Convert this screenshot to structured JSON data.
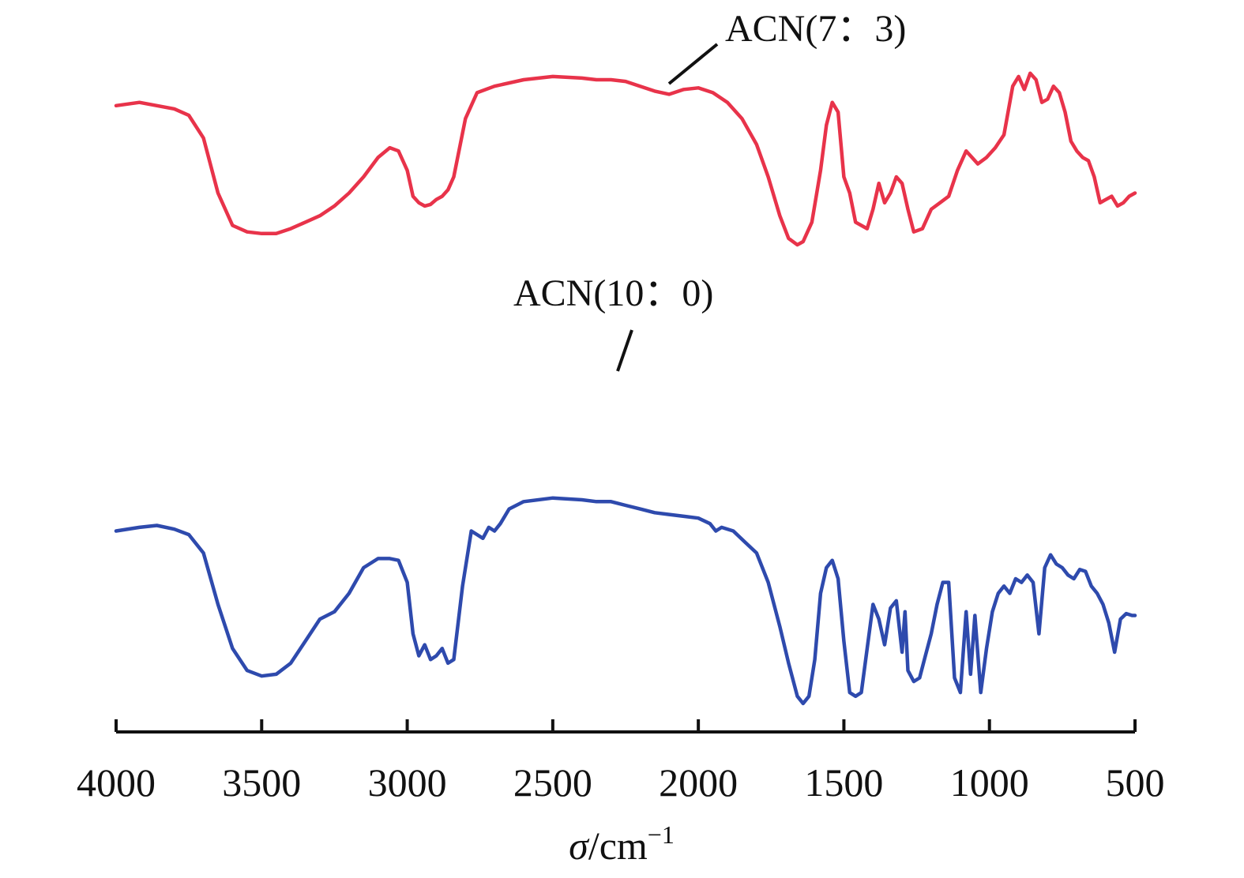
{
  "chart_data": {
    "type": "line",
    "xlabel_symbol": "σ",
    "xlabel_unit": "/cm",
    "xlabel_sup": "−1",
    "xlim": [
      4000,
      500
    ],
    "x_ticks": [
      4000,
      3500,
      3000,
      2500,
      2000,
      1500,
      1000,
      500
    ],
    "x_tick_labels": [
      "4000",
      "3500",
      "3000",
      "2500",
      "2000",
      "1500",
      "1000",
      "500"
    ],
    "grid": false,
    "y_axis_visible": false,
    "series": [
      {
        "name": "ACN(7：3)",
        "color": "#e8334a",
        "points": [
          [
            4000,
            0.82
          ],
          [
            3920,
            0.83
          ],
          [
            3860,
            0.82
          ],
          [
            3800,
            0.81
          ],
          [
            3750,
            0.79
          ],
          [
            3700,
            0.72
          ],
          [
            3650,
            0.55
          ],
          [
            3600,
            0.45
          ],
          [
            3550,
            0.43
          ],
          [
            3500,
            0.425
          ],
          [
            3450,
            0.425
          ],
          [
            3400,
            0.44
          ],
          [
            3350,
            0.46
          ],
          [
            3300,
            0.48
          ],
          [
            3250,
            0.51
          ],
          [
            3200,
            0.55
          ],
          [
            3150,
            0.6
          ],
          [
            3100,
            0.66
          ],
          [
            3060,
            0.69
          ],
          [
            3030,
            0.68
          ],
          [
            3000,
            0.62
          ],
          [
            2980,
            0.54
          ],
          [
            2960,
            0.52
          ],
          [
            2940,
            0.51
          ],
          [
            2920,
            0.515
          ],
          [
            2900,
            0.53
          ],
          [
            2880,
            0.54
          ],
          [
            2860,
            0.56
          ],
          [
            2840,
            0.6
          ],
          [
            2800,
            0.78
          ],
          [
            2760,
            0.86
          ],
          [
            2700,
            0.88
          ],
          [
            2600,
            0.9
          ],
          [
            2500,
            0.91
          ],
          [
            2400,
            0.905
          ],
          [
            2350,
            0.9
          ],
          [
            2300,
            0.9
          ],
          [
            2250,
            0.895
          ],
          [
            2200,
            0.88
          ],
          [
            2150,
            0.865
          ],
          [
            2100,
            0.855
          ],
          [
            2050,
            0.87
          ],
          [
            2000,
            0.875
          ],
          [
            1950,
            0.86
          ],
          [
            1900,
            0.83
          ],
          [
            1850,
            0.78
          ],
          [
            1800,
            0.7
          ],
          [
            1760,
            0.6
          ],
          [
            1720,
            0.48
          ],
          [
            1690,
            0.41
          ],
          [
            1660,
            0.39
          ],
          [
            1640,
            0.4
          ],
          [
            1610,
            0.46
          ],
          [
            1580,
            0.62
          ],
          [
            1560,
            0.76
          ],
          [
            1540,
            0.83
          ],
          [
            1520,
            0.8
          ],
          [
            1500,
            0.6
          ],
          [
            1480,
            0.55
          ],
          [
            1460,
            0.46
          ],
          [
            1440,
            0.45
          ],
          [
            1420,
            0.44
          ],
          [
            1400,
            0.5
          ],
          [
            1380,
            0.58
          ],
          [
            1360,
            0.52
          ],
          [
            1340,
            0.55
          ],
          [
            1320,
            0.6
          ],
          [
            1300,
            0.58
          ],
          [
            1280,
            0.5
          ],
          [
            1260,
            0.43
          ],
          [
            1230,
            0.44
          ],
          [
            1200,
            0.5
          ],
          [
            1170,
            0.52
          ],
          [
            1140,
            0.54
          ],
          [
            1110,
            0.62
          ],
          [
            1080,
            0.68
          ],
          [
            1060,
            0.66
          ],
          [
            1040,
            0.64
          ],
          [
            1010,
            0.66
          ],
          [
            980,
            0.69
          ],
          [
            950,
            0.73
          ],
          [
            920,
            0.88
          ],
          [
            900,
            0.91
          ],
          [
            880,
            0.87
          ],
          [
            860,
            0.92
          ],
          [
            840,
            0.9
          ],
          [
            820,
            0.83
          ],
          [
            800,
            0.84
          ],
          [
            780,
            0.88
          ],
          [
            760,
            0.86
          ],
          [
            740,
            0.8
          ],
          [
            720,
            0.71
          ],
          [
            700,
            0.68
          ],
          [
            680,
            0.66
          ],
          [
            660,
            0.65
          ],
          [
            640,
            0.6
          ],
          [
            620,
            0.52
          ],
          [
            600,
            0.53
          ],
          [
            580,
            0.54
          ],
          [
            560,
            0.51
          ],
          [
            540,
            0.52
          ],
          [
            520,
            0.54
          ],
          [
            500,
            0.55
          ]
        ]
      },
      {
        "name": "ACN(10：0)",
        "color": "#2e4aad",
        "points": [
          [
            4000,
            0.5
          ],
          [
            3920,
            0.51
          ],
          [
            3860,
            0.515
          ],
          [
            3800,
            0.505
          ],
          [
            3750,
            0.49
          ],
          [
            3700,
            0.44
          ],
          [
            3650,
            0.3
          ],
          [
            3600,
            0.18
          ],
          [
            3550,
            0.12
          ],
          [
            3500,
            0.105
          ],
          [
            3450,
            0.11
          ],
          [
            3400,
            0.14
          ],
          [
            3350,
            0.2
          ],
          [
            3300,
            0.26
          ],
          [
            3250,
            0.28
          ],
          [
            3200,
            0.33
          ],
          [
            3150,
            0.4
          ],
          [
            3100,
            0.425
          ],
          [
            3060,
            0.425
          ],
          [
            3030,
            0.42
          ],
          [
            3000,
            0.36
          ],
          [
            2980,
            0.22
          ],
          [
            2960,
            0.16
          ],
          [
            2940,
            0.19
          ],
          [
            2920,
            0.15
          ],
          [
            2900,
            0.16
          ],
          [
            2880,
            0.18
          ],
          [
            2860,
            0.14
          ],
          [
            2840,
            0.15
          ],
          [
            2810,
            0.35
          ],
          [
            2780,
            0.5
          ],
          [
            2760,
            0.49
          ],
          [
            2740,
            0.48
          ],
          [
            2720,
            0.51
          ],
          [
            2700,
            0.5
          ],
          [
            2680,
            0.52
          ],
          [
            2650,
            0.56
          ],
          [
            2600,
            0.58
          ],
          [
            2500,
            0.59
          ],
          [
            2400,
            0.585
          ],
          [
            2350,
            0.58
          ],
          [
            2300,
            0.58
          ],
          [
            2250,
            0.57
          ],
          [
            2200,
            0.56
          ],
          [
            2150,
            0.55
          ],
          [
            2100,
            0.545
          ],
          [
            2050,
            0.54
          ],
          [
            2000,
            0.535
          ],
          [
            1960,
            0.52
          ],
          [
            1940,
            0.5
          ],
          [
            1920,
            0.51
          ],
          [
            1880,
            0.5
          ],
          [
            1840,
            0.47
          ],
          [
            1800,
            0.44
          ],
          [
            1760,
            0.36
          ],
          [
            1720,
            0.24
          ],
          [
            1690,
            0.14
          ],
          [
            1660,
            0.05
          ],
          [
            1640,
            0.03
          ],
          [
            1620,
            0.05
          ],
          [
            1600,
            0.15
          ],
          [
            1580,
            0.33
          ],
          [
            1560,
            0.4
          ],
          [
            1540,
            0.42
          ],
          [
            1520,
            0.37
          ],
          [
            1500,
            0.2
          ],
          [
            1480,
            0.06
          ],
          [
            1460,
            0.05
          ],
          [
            1440,
            0.06
          ],
          [
            1420,
            0.18
          ],
          [
            1400,
            0.3
          ],
          [
            1380,
            0.26
          ],
          [
            1360,
            0.19
          ],
          [
            1340,
            0.29
          ],
          [
            1320,
            0.31
          ],
          [
            1300,
            0.17
          ],
          [
            1290,
            0.28
          ],
          [
            1280,
            0.12
          ],
          [
            1260,
            0.09
          ],
          [
            1240,
            0.1
          ],
          [
            1220,
            0.16
          ],
          [
            1200,
            0.22
          ],
          [
            1180,
            0.3
          ],
          [
            1160,
            0.36
          ],
          [
            1140,
            0.36
          ],
          [
            1120,
            0.1
          ],
          [
            1100,
            0.06
          ],
          [
            1080,
            0.28
          ],
          [
            1065,
            0.11
          ],
          [
            1050,
            0.27
          ],
          [
            1030,
            0.06
          ],
          [
            1010,
            0.18
          ],
          [
            990,
            0.28
          ],
          [
            970,
            0.33
          ],
          [
            950,
            0.35
          ],
          [
            930,
            0.33
          ],
          [
            910,
            0.37
          ],
          [
            890,
            0.36
          ],
          [
            870,
            0.38
          ],
          [
            850,
            0.36
          ],
          [
            830,
            0.22
          ],
          [
            810,
            0.4
          ],
          [
            790,
            0.435
          ],
          [
            770,
            0.41
          ],
          [
            750,
            0.4
          ],
          [
            730,
            0.38
          ],
          [
            710,
            0.37
          ],
          [
            690,
            0.395
          ],
          [
            670,
            0.39
          ],
          [
            650,
            0.35
          ],
          [
            630,
            0.33
          ],
          [
            610,
            0.3
          ],
          [
            590,
            0.25
          ],
          [
            570,
            0.17
          ],
          [
            550,
            0.26
          ],
          [
            530,
            0.275
          ],
          [
            510,
            0.27
          ],
          [
            500,
            0.27
          ]
        ]
      }
    ],
    "annotations": [
      {
        "series": "ACN(7：3)",
        "text": "ACN(7：3)"
      },
      {
        "series": "ACN(10：0)",
        "text": "ACN(10：0)"
      }
    ]
  }
}
